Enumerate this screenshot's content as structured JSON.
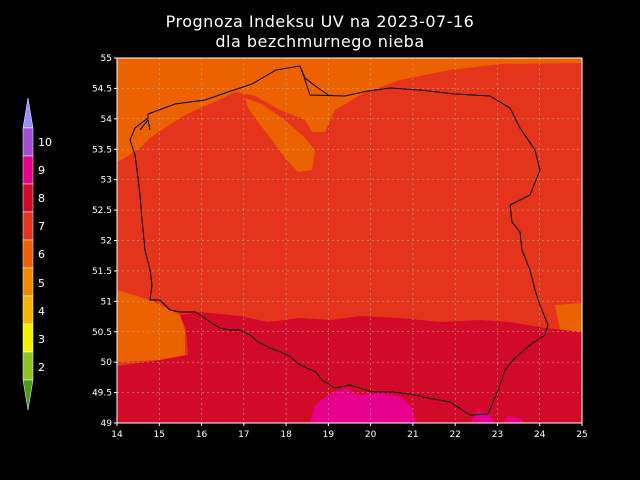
{
  "title": "Prognoza Indeksu UV na 2023-07-16",
  "subtitle": "dla bezchmurnego nieba",
  "map": {
    "lon_ticks": [
      "14",
      "15",
      "16",
      "17",
      "18",
      "19",
      "20",
      "21",
      "22",
      "23",
      "24",
      "25"
    ],
    "lat_ticks": [
      "49",
      "49.5",
      "50",
      "50.5",
      "51",
      "51.5",
      "52",
      "52.5",
      "53",
      "53.5",
      "54",
      "54.5",
      "55"
    ],
    "lon_range": [
      14,
      25
    ],
    "lat_range": [
      49,
      55
    ],
    "grid": true
  },
  "colorbar": {
    "labels": [
      "2",
      "3",
      "4",
      "5",
      "6",
      "7",
      "8",
      "9",
      "10"
    ],
    "colors": {
      "1": "#4c9a1c",
      "2": "#8cc421",
      "3": "#f2f200",
      "4": "#f5b400",
      "5": "#f28a00",
      "6": "#ec6100",
      "7": "#e4341c",
      "8": "#d10a29",
      "9": "#e6008c",
      "10": "#a64dd6",
      "11": "#9b8cff"
    }
  }
}
